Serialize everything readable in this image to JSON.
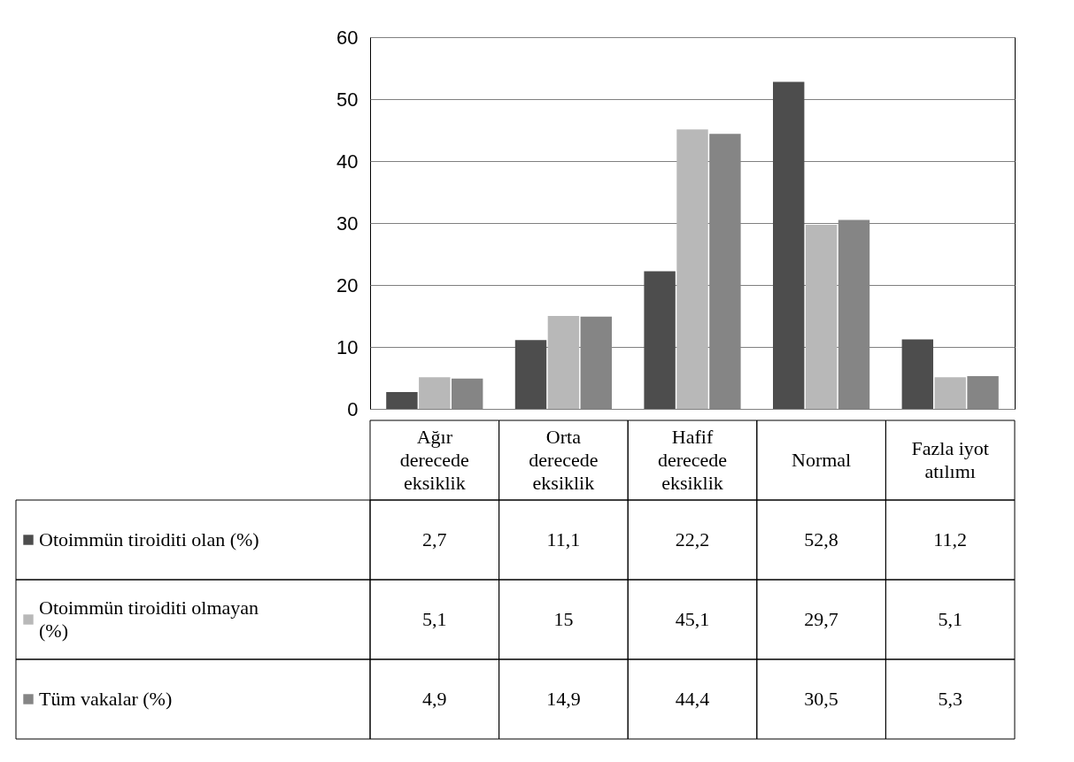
{
  "chart_data": {
    "type": "bar",
    "categories": [
      "Ağır derecede eksiklik",
      "Orta derecede eksiklik",
      "Hafif derecede eksiklik",
      "Normal",
      "Fazla iyot atılımı"
    ],
    "series": [
      {
        "name": "Otoimmün tiroiditi olan (%)",
        "color": "#4d4d4d",
        "values": [
          2.7,
          11.1,
          22.2,
          52.8,
          11.2
        ],
        "value_labels": [
          "2,7",
          "11,1",
          "22,2",
          "52,8",
          "11,2"
        ]
      },
      {
        "name": "Otoimmün tiroiditi olmayan (%)",
        "color": "#b8b8b8",
        "values": [
          5.1,
          15,
          45.1,
          29.7,
          5.1
        ],
        "value_labels": [
          "5,1",
          "15",
          "45,1",
          "29,7",
          "5,1"
        ]
      },
      {
        "name": "Tüm vakalar (%)",
        "color": "#858585",
        "values": [
          4.9,
          14.9,
          44.4,
          30.5,
          5.3
        ],
        "value_labels": [
          "4,9",
          "14,9",
          "44,4",
          "30,5",
          "5,3"
        ]
      }
    ],
    "ylim": [
      0,
      60
    ],
    "yticks": [
      0,
      10,
      20,
      30,
      40,
      50,
      60
    ],
    "grid": "y",
    "legend": "bottom left"
  }
}
